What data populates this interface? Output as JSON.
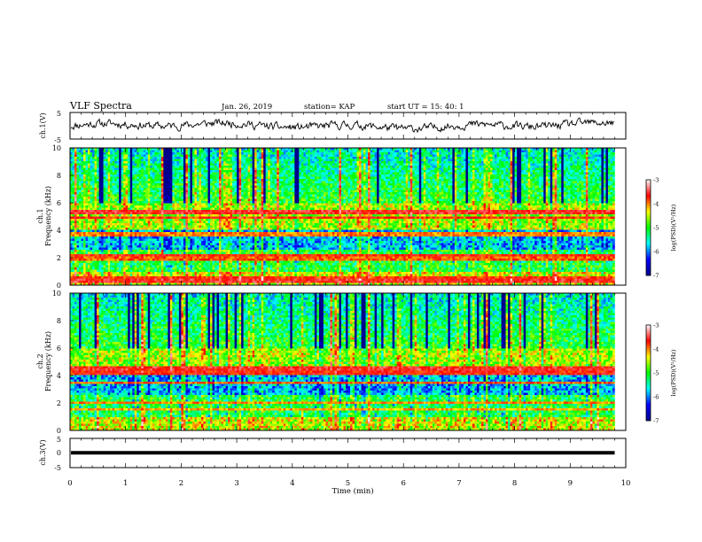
{
  "header": {
    "title": "VLF Spectra",
    "date": "Jan. 26, 2019",
    "station": "station= KAP",
    "start": "start  UT =   15: 40: 1"
  },
  "chart_data": [
    {
      "type": "line",
      "name": "ch1-waveform",
      "ylabel": "ch.1(V)",
      "xlim": [
        0,
        10
      ],
      "ylim": [
        -5,
        5
      ],
      "yticks": [
        "5",
        "-5"
      ],
      "x_end": 9.8,
      "noise_amplitude": 1.5
    },
    {
      "type": "heatmap",
      "name": "ch1-spectrogram",
      "ylabel": "ch.1\nFrequency (kHz)",
      "xlim": [
        0,
        10
      ],
      "ylim": [
        0,
        10
      ],
      "yticks": [
        "0",
        "2",
        "4",
        "6",
        "8",
        "10"
      ],
      "x_end": 9.8,
      "colorbar": {
        "label": "log(PSD)(V²/Hz)",
        "range": [
          -7,
          -3
        ],
        "ticks": [
          "-3",
          "-4",
          "-5",
          "-6",
          "-7"
        ],
        "colors": [
          "#00008b",
          "#0000ff",
          "#00ffff",
          "#00ff00",
          "#ffff00",
          "#ff0000",
          "#ffffff"
        ]
      },
      "bands_khz": [
        {
          "f": 5.3,
          "level": -3.6
        },
        {
          "f": 4.9,
          "level": -3.8
        },
        {
          "f": 3.7,
          "level": -4.0
        },
        {
          "f": 2.2,
          "level": -3.7
        },
        {
          "f": 1.95,
          "level": -3.9
        },
        {
          "f": 0.55,
          "level": -3.8
        },
        {
          "f": 0.3,
          "level": -3.6
        }
      ]
    },
    {
      "type": "heatmap",
      "name": "ch2-spectrogram",
      "ylabel": "ch.2\nFrequency (kHz)",
      "xlim": [
        0,
        10
      ],
      "ylim": [
        0,
        10
      ],
      "yticks": [
        "0",
        "2",
        "4",
        "6",
        "8",
        "10"
      ],
      "x_end": 9.8,
      "colorbar": {
        "label": "log(PSD)(V²/Hz)",
        "range": [
          -7,
          -3
        ],
        "ticks": [
          "-3",
          "-4",
          "-5",
          "-6",
          "-7"
        ],
        "colors": [
          "#00008b",
          "#0000ff",
          "#00ffff",
          "#00ff00",
          "#ffff00",
          "#ff0000",
          "#ffffff"
        ]
      },
      "bands_khz": [
        {
          "f": 4.5,
          "level": -3.6
        },
        {
          "f": 4.2,
          "level": -3.7
        },
        {
          "f": 3.5,
          "level": -3.9
        },
        {
          "f": 2.0,
          "level": -4.0
        },
        {
          "f": 1.5,
          "level": -4.1
        }
      ]
    },
    {
      "type": "line",
      "name": "ch3-waveform",
      "ylabel": "ch.3(V)",
      "xlim": [
        0,
        10
      ],
      "ylim": [
        -5,
        5
      ],
      "yticks": [
        "5",
        "0",
        "-5"
      ],
      "x_end": 9.8,
      "constant_value": 0.1
    }
  ],
  "x_axis": {
    "label": "Time (min)",
    "ticks": [
      "0",
      "1",
      "2",
      "3",
      "4",
      "5",
      "6",
      "7",
      "8",
      "9",
      "10"
    ]
  }
}
